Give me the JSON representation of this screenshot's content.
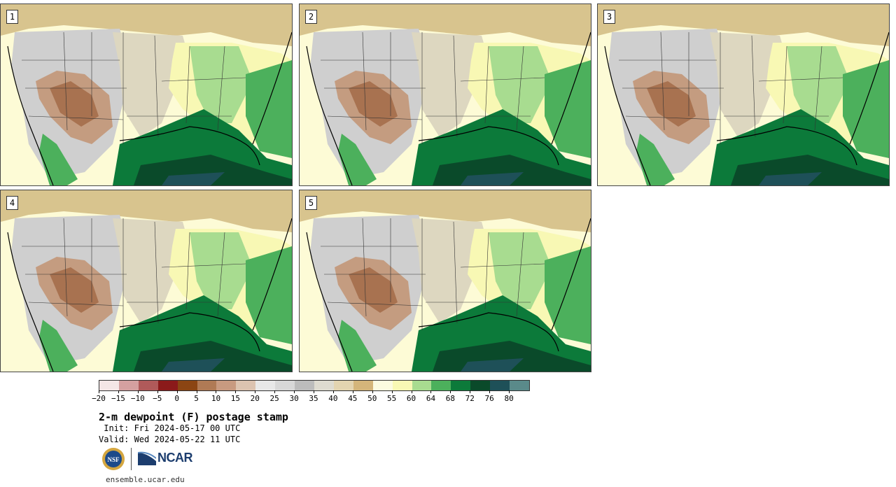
{
  "panels": [
    {
      "label": "1"
    },
    {
      "label": "2"
    },
    {
      "label": "3"
    },
    {
      "label": "4"
    },
    {
      "label": "5"
    }
  ],
  "colorbar": {
    "colors": [
      "#f4e6e6",
      "#d4a0a0",
      "#b05a5a",
      "#8b1a1a",
      "#8b4513",
      "#b07a55",
      "#c89a80",
      "#dcc3b0",
      "#e8e8e8",
      "#d8d8d8",
      "#bcbcbc",
      "#dedbd0",
      "#e3d4b0",
      "#d4b57a",
      "#fbfbe0",
      "#f8f8b4",
      "#a8dc90",
      "#4cb05c",
      "#0c7a3a",
      "#0a4a2a",
      "#1e5058",
      "#5a8a8a"
    ],
    "ticks": [
      "−20",
      "−15",
      "−10",
      "−5",
      "0",
      "5",
      "10",
      "15",
      "20",
      "25",
      "30",
      "35",
      "40",
      "45",
      "50",
      "55",
      "60",
      "64",
      "68",
      "72",
      "76",
      "80"
    ]
  },
  "title": "2-m dewpoint (F) postage stamp",
  "init": " Init: Fri 2024-05-17 00 UTC",
  "valid": "Valid: Wed 2024-05-22 11 UTC",
  "logos": {
    "nsf": "NSF",
    "ncar": "NCAR"
  },
  "url": "ensemble.ucar.edu"
}
